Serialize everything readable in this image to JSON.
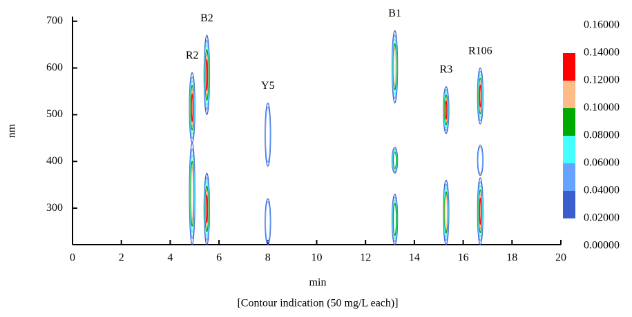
{
  "chart_data": {
    "type": "contour",
    "xlabel": "min",
    "ylabel": "nm",
    "caption": "[Contour indication (50 mg/L each)]",
    "xlim": [
      0,
      20
    ],
    "xticks": [
      0,
      2,
      4,
      6,
      8,
      10,
      12,
      14,
      16,
      18,
      20
    ],
    "ylim": [
      222,
      710
    ],
    "yticks": [
      300,
      400,
      500,
      600,
      700
    ],
    "colorbar": {
      "lim": [
        0,
        0.16
      ],
      "ticks": [
        {
          "value": 0,
          "label": "0.00000"
        },
        {
          "value": 0.02,
          "label": "0.02000"
        },
        {
          "value": 0.04,
          "label": "0.04000"
        },
        {
          "value": 0.06,
          "label": "0.06000"
        },
        {
          "value": 0.08,
          "label": "0.08000"
        },
        {
          "value": 0.1,
          "label": "0.10000"
        },
        {
          "value": 0.12,
          "label": "0.12000"
        },
        {
          "value": 0.14,
          "label": "0.14000"
        },
        {
          "value": 0.16,
          "label": "0.16000"
        }
      ],
      "colors": [
        "#3a5fcd",
        "#66a3ff",
        "#44ffff",
        "#00aa00",
        "#ffbb88",
        "#ff0000"
      ]
    },
    "peaks": [
      {
        "name": "R2",
        "x": 4.9,
        "spots": [
          {
            "y": [
              440,
              590
            ],
            "level": 0.12
          },
          {
            "y": [
              222,
              440
            ],
            "level": 0.1
          }
        ]
      },
      {
        "name": "B2",
        "x": 5.5,
        "spots": [
          {
            "y": [
              500,
              670
            ],
            "level": 0.12
          },
          {
            "y": [
              222,
              375
            ],
            "level": 0.12
          }
        ]
      },
      {
        "name": "Y5",
        "x": 8.0,
        "spots": [
          {
            "y": [
              390,
              525
            ],
            "level": 0.04
          },
          {
            "y": [
              222,
              320
            ],
            "level": 0.04
          }
        ]
      },
      {
        "name": "B1",
        "x": 13.2,
        "spots": [
          {
            "y": [
              525,
              680
            ],
            "level": 0.1
          },
          {
            "y": [
              375,
              430
            ],
            "level": 0.08
          },
          {
            "y": [
              222,
              330
            ],
            "level": 0.08
          }
        ]
      },
      {
        "name": "R3",
        "x": 15.3,
        "spots": [
          {
            "y": [
              460,
              560
            ],
            "level": 0.12
          },
          {
            "y": [
              222,
              360
            ],
            "level": 0.1
          }
        ]
      },
      {
        "name": "R106",
        "x": 16.7,
        "spots": [
          {
            "y": [
              480,
              600
            ],
            "level": 0.12
          },
          {
            "y": [
              370,
              435
            ],
            "level": 0.04
          },
          {
            "y": [
              222,
              365
            ],
            "level": 0.12
          }
        ]
      }
    ]
  }
}
